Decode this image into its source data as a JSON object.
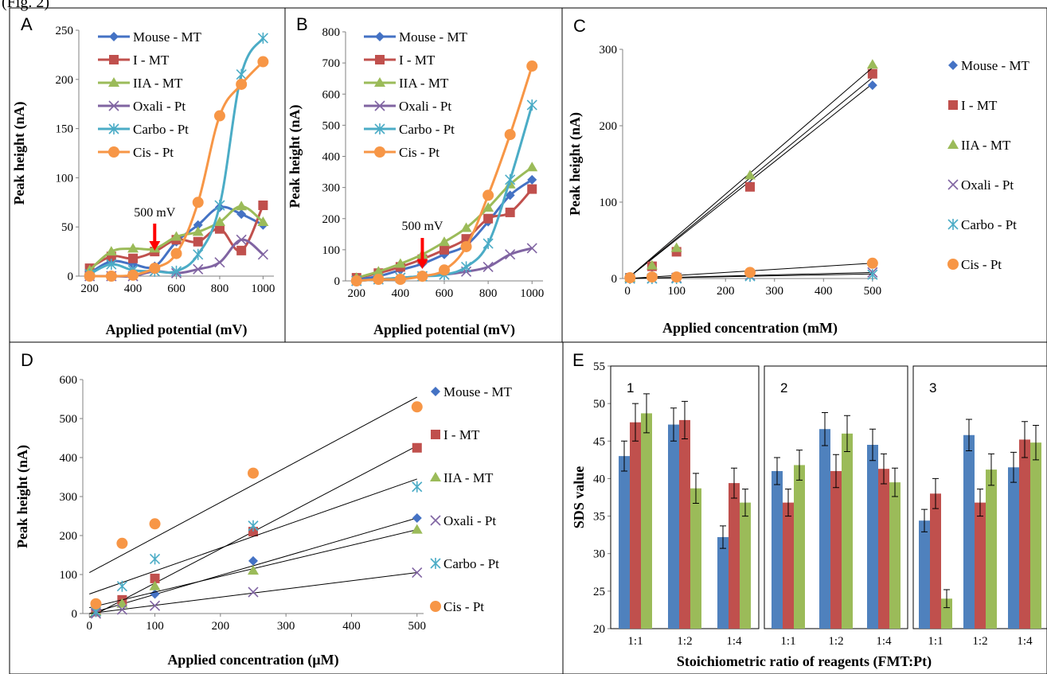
{
  "page_caption": "(Fig. 2)",
  "chart_data": [
    {
      "id": "A",
      "type": "line",
      "panel_label": "A",
      "xlabel": "Applied potential (mV)",
      "ylabel": "Peak height (nA)",
      "xlim": [
        150,
        1050
      ],
      "ylim": [
        0,
        250
      ],
      "xticks": [
        200,
        400,
        600,
        800,
        1000
      ],
      "yticks": [
        0,
        50,
        100,
        150,
        200,
        250
      ],
      "legend_position": "top-left",
      "annotation": {
        "text": "500 mV",
        "x": 500
      },
      "series": [
        {
          "name": "Mouse - MT",
          "color": "#4472c4",
          "marker": "diamond",
          "x": [
            200,
            300,
            400,
            500,
            600,
            700,
            800,
            900,
            1000
          ],
          "y": [
            3,
            15,
            12,
            10,
            35,
            52,
            70,
            63,
            52
          ]
        },
        {
          "name": "I - MT",
          "color": "#c0504d",
          "marker": "square",
          "x": [
            200,
            300,
            400,
            500,
            600,
            700,
            800,
            900,
            1000
          ],
          "y": [
            8,
            20,
            18,
            25,
            37,
            35,
            48,
            26,
            72
          ]
        },
        {
          "name": "IIA - MT",
          "color": "#9bbb59",
          "marker": "triangle",
          "x": [
            200,
            300,
            400,
            500,
            600,
            700,
            800,
            900,
            1000
          ],
          "y": [
            6,
            25,
            28,
            28,
            40,
            45,
            55,
            71,
            55
          ]
        },
        {
          "name": "Oxali - Pt",
          "color": "#8064a2",
          "marker": "x",
          "x": [
            200,
            300,
            400,
            500,
            600,
            700,
            800,
            900,
            1000
          ],
          "y": [
            0,
            0,
            0,
            5,
            3,
            7,
            14,
            37,
            22
          ]
        },
        {
          "name": "Carbo - Pt",
          "color": "#4bacc6",
          "marker": "star",
          "x": [
            200,
            300,
            400,
            500,
            600,
            700,
            800,
            900,
            1000
          ],
          "y": [
            2,
            12,
            6,
            5,
            5,
            22,
            72,
            205,
            242
          ]
        },
        {
          "name": "Cis - Pt",
          "color": "#f79646",
          "marker": "circle",
          "x": [
            200,
            300,
            400,
            500,
            600,
            700,
            800,
            900,
            1000
          ],
          "y": [
            0,
            0,
            1,
            8,
            23,
            75,
            163,
            195,
            218
          ]
        }
      ]
    },
    {
      "id": "B",
      "type": "line",
      "panel_label": "B",
      "xlabel": "Applied potential (mV)",
      "ylabel": "Peak height (nA)",
      "xlim": [
        150,
        1050
      ],
      "ylim": [
        0,
        800
      ],
      "xticks": [
        200,
        400,
        600,
        800,
        1000
      ],
      "yticks": [
        0,
        100,
        200,
        300,
        400,
        500,
        600,
        700,
        800
      ],
      "legend_position": "top-left",
      "annotation": {
        "text": "500 mV",
        "x": 500
      },
      "series": [
        {
          "name": "Mouse - MT",
          "color": "#4472c4",
          "marker": "diamond",
          "x": [
            200,
            300,
            400,
            500,
            600,
            700,
            800,
            900,
            1000
          ],
          "y": [
            5,
            15,
            35,
            55,
            85,
            115,
            190,
            275,
            325
          ]
        },
        {
          "name": "I - MT",
          "color": "#c0504d",
          "marker": "square",
          "x": [
            200,
            300,
            400,
            500,
            600,
            700,
            800,
            900,
            1000
          ],
          "y": [
            10,
            25,
            45,
            70,
            100,
            135,
            200,
            220,
            295
          ]
        },
        {
          "name": "IIA - MT",
          "color": "#9bbb59",
          "marker": "triangle",
          "x": [
            200,
            300,
            400,
            500,
            600,
            700,
            800,
            900,
            1000
          ],
          "y": [
            10,
            30,
            55,
            85,
            125,
            170,
            235,
            310,
            365
          ]
        },
        {
          "name": "Oxali - Pt",
          "color": "#8064a2",
          "marker": "x",
          "x": [
            200,
            300,
            400,
            500,
            600,
            700,
            800,
            900,
            1000
          ],
          "y": [
            0,
            5,
            10,
            15,
            20,
            30,
            45,
            85,
            105
          ]
        },
        {
          "name": "Carbo - Pt",
          "color": "#4bacc6",
          "marker": "star",
          "x": [
            200,
            300,
            400,
            500,
            600,
            700,
            800,
            900,
            1000
          ],
          "y": [
            0,
            5,
            10,
            15,
            20,
            45,
            120,
            325,
            565
          ]
        },
        {
          "name": "Cis - Pt",
          "color": "#f79646",
          "marker": "circle",
          "x": [
            200,
            300,
            400,
            500,
            600,
            700,
            800,
            900,
            1000
          ],
          "y": [
            0,
            5,
            5,
            15,
            35,
            110,
            275,
            470,
            690
          ]
        }
      ]
    },
    {
      "id": "C",
      "type": "scatter",
      "panel_label": "C",
      "xlabel": "Applied concentration (mM)",
      "ylabel": "Peak height (nA)",
      "xlim": [
        -10,
        510
      ],
      "ylim": [
        0,
        300
      ],
      "xticks": [
        0,
        100,
        200,
        300,
        400,
        500
      ],
      "yticks": [
        0,
        100,
        200,
        300
      ],
      "legend_position": "right",
      "series": [
        {
          "name": "Mouse - MT",
          "color": "#4472c4",
          "marker": "diamond",
          "x": [
            5,
            50,
            100,
            250,
            500
          ],
          "y": [
            1,
            15,
            38,
            122,
            253
          ],
          "trend": [
            [
              0,
              0
            ],
            [
              500,
              255
            ]
          ]
        },
        {
          "name": "I - MT",
          "color": "#c0504d",
          "marker": "square",
          "x": [
            5,
            50,
            100,
            250,
            500
          ],
          "y": [
            1,
            16,
            35,
            120,
            268
          ],
          "trend": [
            [
              0,
              0
            ],
            [
              500,
              263
            ]
          ]
        },
        {
          "name": "IIA - MT",
          "color": "#9bbb59",
          "marker": "triangle",
          "x": [
            5,
            50,
            100,
            250,
            500
          ],
          "y": [
            1,
            17,
            40,
            135,
            280
          ],
          "trend": [
            [
              0,
              0
            ],
            [
              500,
              276
            ]
          ]
        },
        {
          "name": "Oxali - Pt",
          "color": "#8064a2",
          "marker": "x",
          "x": [
            5,
            50,
            100,
            250,
            500
          ],
          "y": [
            0,
            0,
            1,
            4,
            8
          ],
          "trend": [
            [
              0,
              0
            ],
            [
              500,
              8
            ]
          ]
        },
        {
          "name": "Carbo - Pt",
          "color": "#4bacc6",
          "marker": "star",
          "x": [
            5,
            50,
            100,
            250,
            500
          ],
          "y": [
            0,
            0,
            0,
            3,
            5
          ],
          "trend": [
            [
              0,
              0
            ],
            [
              500,
              6
            ]
          ]
        },
        {
          "name": "Cis - Pt",
          "color": "#f79646",
          "marker": "circle",
          "x": [
            5,
            50,
            100,
            250,
            500
          ],
          "y": [
            1,
            2,
            2,
            8,
            20
          ],
          "trend": [
            [
              0,
              0
            ],
            [
              500,
              20
            ]
          ]
        }
      ]
    },
    {
      "id": "D",
      "type": "scatter",
      "panel_label": "D",
      "xlabel": "Applied concentration (µM)",
      "ylabel": "Peak height (nA)",
      "xlim": [
        -10,
        510
      ],
      "ylim": [
        0,
        600
      ],
      "xticks": [
        0,
        100,
        200,
        300,
        400,
        500
      ],
      "yticks": [
        0,
        100,
        200,
        300,
        400,
        500,
        600
      ],
      "legend_position": "right",
      "series": [
        {
          "name": "Mouse - MT",
          "color": "#4472c4",
          "marker": "diamond",
          "x": [
            10,
            50,
            100,
            250,
            500
          ],
          "y": [
            5,
            35,
            50,
            135,
            245
          ],
          "trend": [
            [
              0,
              0
            ],
            [
              500,
              245
            ]
          ]
        },
        {
          "name": "I - MT",
          "color": "#c0504d",
          "marker": "square",
          "x": [
            10,
            50,
            100,
            250,
            500
          ],
          "y": [
            5,
            35,
            90,
            210,
            425
          ],
          "trend": [
            [
              0,
              -10
            ],
            [
              500,
              430
            ]
          ]
        },
        {
          "name": "IIA - MT",
          "color": "#9bbb59",
          "marker": "triangle",
          "x": [
            10,
            50,
            100,
            250,
            500
          ],
          "y": [
            5,
            25,
            70,
            110,
            215
          ],
          "trend": [
            [
              0,
              15
            ],
            [
              500,
              215
            ]
          ]
        },
        {
          "name": "Oxali - Pt",
          "color": "#8064a2",
          "marker": "x",
          "x": [
            10,
            50,
            100,
            250,
            500
          ],
          "y": [
            0,
            10,
            20,
            55,
            105
          ],
          "trend": [
            [
              0,
              0
            ],
            [
              500,
              105
            ]
          ]
        },
        {
          "name": "Carbo - Pt",
          "color": "#4bacc6",
          "marker": "star",
          "x": [
            10,
            50,
            100,
            250,
            500
          ],
          "y": [
            5,
            70,
            140,
            225,
            325
          ],
          "trend": [
            [
              0,
              50
            ],
            [
              500,
              345
            ]
          ]
        },
        {
          "name": "Cis - Pt",
          "color": "#f79646",
          "marker": "circle",
          "x": [
            10,
            50,
            100,
            250,
            500
          ],
          "y": [
            25,
            180,
            230,
            360,
            530
          ],
          "trend": [
            [
              0,
              105
            ],
            [
              500,
              555
            ]
          ]
        }
      ]
    },
    {
      "id": "E",
      "type": "bar",
      "panel_label": "E",
      "xlabel": "Stoichiometric ratio of reagents (FMT:Pt)",
      "ylabel": "SDS  value",
      "ylim": [
        20,
        55
      ],
      "yticks": [
        20,
        25,
        30,
        35,
        40,
        45,
        50,
        55
      ],
      "series_colors": [
        "#4f81bd",
        "#c0504d",
        "#9bbb59"
      ],
      "groups": [
        {
          "label": "1",
          "categories": [
            "1:1",
            "1:2",
            "1:4"
          ],
          "values": [
            [
              43.0,
              47.5,
              48.7
            ],
            [
              47.2,
              47.8,
              38.7
            ],
            [
              32.2,
              39.4,
              36.8
            ]
          ],
          "errors": [
            [
              2.0,
              2.5,
              2.6
            ],
            [
              2.2,
              2.5,
              2.0
            ],
            [
              1.5,
              2.0,
              1.8
            ]
          ]
        },
        {
          "label": "2",
          "categories": [
            "1:1",
            "1:2",
            "1:4"
          ],
          "values": [
            [
              41.0,
              36.8,
              41.8
            ],
            [
              46.6,
              41.0,
              46.0
            ],
            [
              44.5,
              41.3,
              39.5
            ]
          ],
          "errors": [
            [
              1.8,
              1.8,
              2.0
            ],
            [
              2.2,
              2.2,
              2.4
            ],
            [
              2.1,
              2.0,
              1.9
            ]
          ]
        },
        {
          "label": "3",
          "categories": [
            "1:1",
            "1:2",
            "1:4"
          ],
          "values": [
            [
              34.4,
              38.0,
              24.0
            ],
            [
              45.8,
              36.8,
              41.2
            ],
            [
              41.5,
              45.2,
              44.8
            ]
          ],
          "errors": [
            [
              1.5,
              2.0,
              1.2
            ],
            [
              2.1,
              1.8,
              2.1
            ],
            [
              2.0,
              2.4,
              2.3
            ]
          ]
        }
      ]
    }
  ]
}
